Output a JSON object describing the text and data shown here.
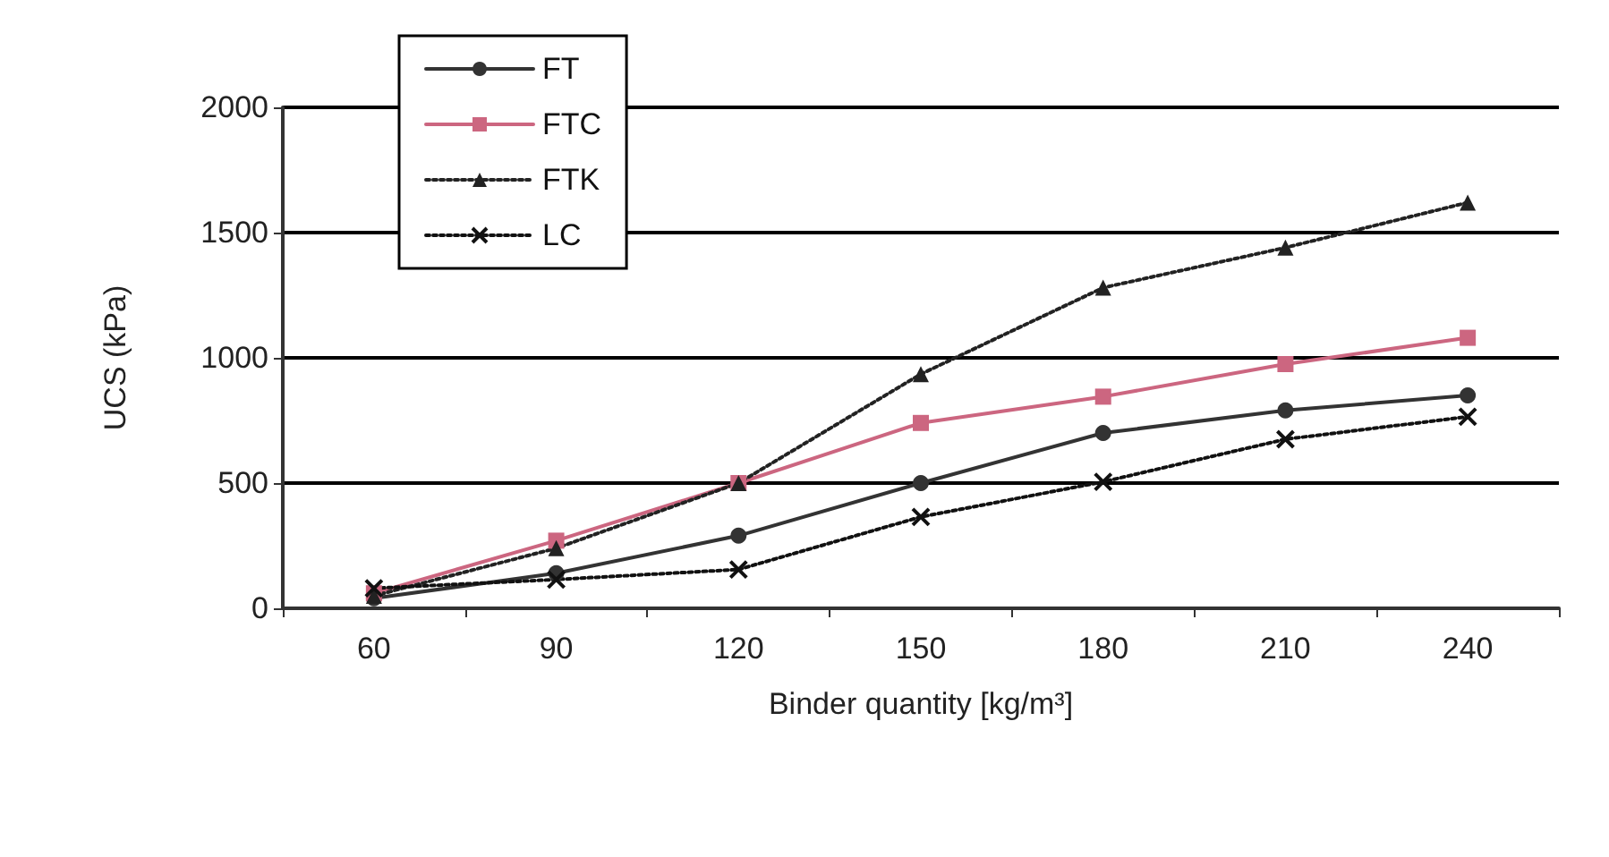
{
  "chart_data": {
    "type": "line",
    "xlabel": "Binder quantity [kg/m³]",
    "ylabel": "UCS (kPa)",
    "categories": [
      "60",
      "90",
      "120",
      "150",
      "180",
      "210",
      "240"
    ],
    "series": [
      {
        "name": "FT",
        "color": "#333333",
        "marker": "circle",
        "line_style": "solid",
        "values": [
          40,
          140,
          290,
          500,
          700,
          790,
          850
        ]
      },
      {
        "name": "FTC",
        "color": "#cc6680",
        "marker": "square",
        "line_style": "solid",
        "values": [
          60,
          270,
          500,
          740,
          845,
          975,
          1080
        ]
      },
      {
        "name": "FTK",
        "color": "#222222",
        "marker": "triangle",
        "line_style": "dotted",
        "values": [
          50,
          240,
          500,
          935,
          1280,
          1440,
          1620
        ]
      },
      {
        "name": "LC",
        "color": "#111111",
        "marker": "cross",
        "line_style": "dotted",
        "values": [
          80,
          115,
          155,
          365,
          505,
          675,
          765
        ]
      }
    ],
    "ylim": [
      0,
      2000
    ],
    "yticks": [
      0,
      500,
      1000,
      1500,
      2000
    ],
    "grid": "y",
    "legend": "top left"
  }
}
